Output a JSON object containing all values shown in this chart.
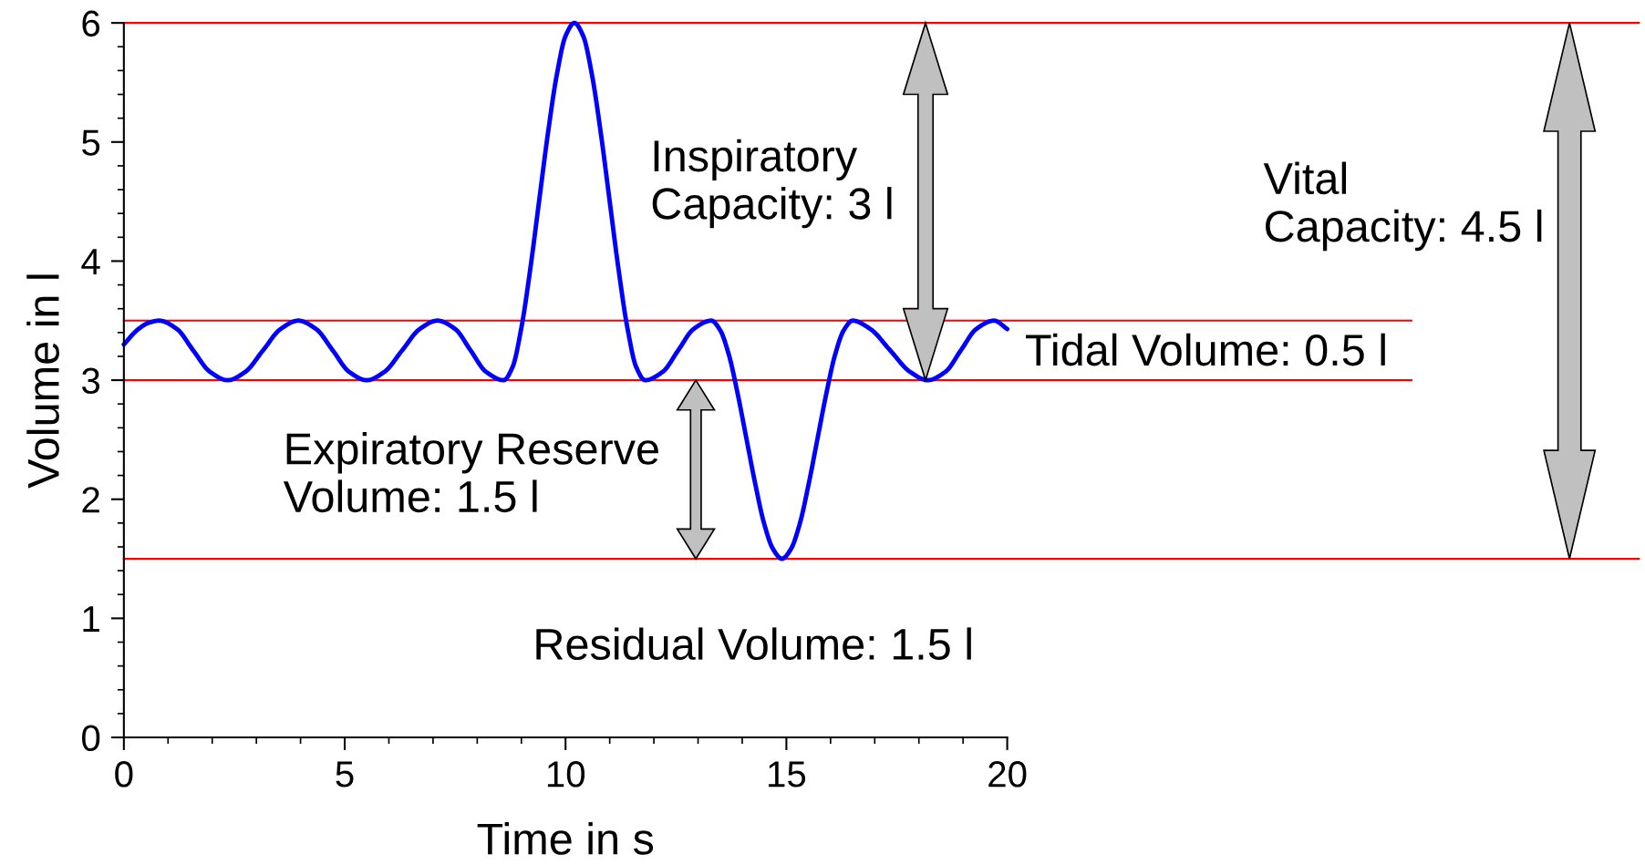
{
  "chart_data": {
    "type": "line",
    "xlabel": "Time in s",
    "ylabel": "Volume in l",
    "x": [
      0,
      0.3,
      0.55,
      0.8,
      1.2,
      1.57,
      1.95,
      2.35,
      2.75,
      3.15,
      3.55,
      3.95,
      4.35,
      4.73,
      5.1,
      5.5,
      5.9,
      6.3,
      6.7,
      7.1,
      7.5,
      7.85,
      8.2,
      8.6,
      8.8,
      9.0,
      9.2,
      9.4,
      9.6,
      9.8,
      10.0,
      10.2,
      10.4,
      10.6,
      10.8,
      11.0,
      11.2,
      11.4,
      11.6,
      11.8,
      12.2,
      12.55,
      12.9,
      13.3,
      13.5,
      13.7,
      13.9,
      14.1,
      14.3,
      14.5,
      14.7,
      14.9,
      15.1,
      15.3,
      15.5,
      15.7,
      15.9,
      16.1,
      16.3,
      16.5,
      16.9,
      17.35,
      17.8,
      18.2,
      18.6,
      18.95,
      19.3,
      19.7,
      20.0
    ],
    "series": [
      {
        "color": "#0000ff",
        "values": [
          3.3,
          3.42,
          3.48,
          3.5,
          3.43,
          3.25,
          3.07,
          3.0,
          3.07,
          3.25,
          3.43,
          3.5,
          3.43,
          3.25,
          3.07,
          3.0,
          3.07,
          3.25,
          3.43,
          3.5,
          3.43,
          3.25,
          3.07,
          3.0,
          3.11,
          3.44,
          3.93,
          4.5,
          5.07,
          5.56,
          5.89,
          6.0,
          5.89,
          5.56,
          5.07,
          4.5,
          3.93,
          3.44,
          3.11,
          3.0,
          3.07,
          3.25,
          3.43,
          3.5,
          3.42,
          3.21,
          2.88,
          2.5,
          2.12,
          1.79,
          1.58,
          1.5,
          1.58,
          1.79,
          2.12,
          2.5,
          2.88,
          3.21,
          3.42,
          3.5,
          3.43,
          3.25,
          3.07,
          3.0,
          3.07,
          3.25,
          3.43,
          3.5,
          3.43
        ]
      }
    ],
    "xlim": [
      0,
      20
    ],
    "ylim": [
      0,
      6
    ],
    "xticks": [
      0,
      5,
      10,
      15,
      20
    ],
    "yticks": [
      0,
      1,
      2,
      3,
      4,
      5,
      6
    ],
    "grid": false,
    "legend": false,
    "marker": "none",
    "line_style": "solid",
    "ref_lines": [
      {
        "axis": "y",
        "value": 6,
        "color": "#ff0000"
      },
      {
        "axis": "y",
        "value": 3.5,
        "color": "#ff0000"
      },
      {
        "axis": "y",
        "value": 3,
        "color": "#ff0000"
      },
      {
        "axis": "y",
        "value": 1.5,
        "color": "#ff0000"
      }
    ],
    "annotations": [
      "Inspiratory\nCapacity: 3 l",
      "Vital\nCapacity: 4.5 l",
      "Tidal Volume: 0.5 l",
      "Expiratory Reserve\nVolume: 1.5 l",
      "Residual Volume: 1.5 l"
    ]
  }
}
